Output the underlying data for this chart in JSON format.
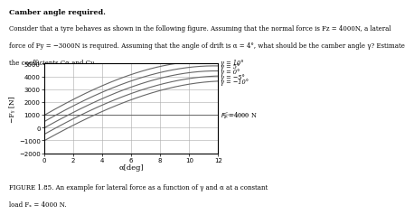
{
  "title_line1": "Camber angle required.",
  "body_text": "Consider that a tyre behaves as shown in the following figure. Assuming that the normal force is Fz = 4000N, a lateral\nforce of Fy = −3000N is required. Assuming that the angle of drift is α = 4°, what should be the camber angle γ? Estimate\nthe coefficients Cα and Cγ.",
  "xlabel": "α[deg]",
  "ylabel": "−Fᵧ [N]",
  "xlim": [
    0,
    12
  ],
  "ylim": [
    -2000,
    5000
  ],
  "xticks": [
    0,
    2,
    4,
    6,
    8,
    10,
    12
  ],
  "yticks": [
    -2000,
    -1000,
    0,
    1000,
    2000,
    3000,
    4000,
    5000
  ],
  "figure_caption_bold": "FIGURE 1.85.",
  "figure_caption_rest": " An example for lateral force as a function of γ and α at a constant",
  "figure_caption2": "load Fₓ = 4000 N.",
  "fz_y": 1000,
  "alpha_points": [
    0,
    2,
    4,
    6,
    8,
    10,
    12
  ],
  "curves": {
    "10": [
      1000,
      2100,
      3300,
      4200,
      4800,
      5050,
      5200
    ],
    "5": [
      500,
      1600,
      2800,
      3700,
      4300,
      4650,
      4850
    ],
    "0": [
      0,
      1100,
      2300,
      3200,
      3850,
      4250,
      4450
    ],
    "-5": [
      -500,
      600,
      1800,
      2700,
      3350,
      3800,
      4050
    ],
    "-10": [
      -1000,
      100,
      1300,
      2200,
      2900,
      3350,
      3650
    ]
  },
  "gamma_label_texts": [
    "γ = 10°",
    "γ = 5°",
    "γ = 0°",
    "γ = −5°",
    "γ = −10°"
  ],
  "gamma_keys": [
    "10",
    "5",
    "0",
    "-5",
    "-10"
  ],
  "line_color": "#666666",
  "grid_color": "#aaaaaa",
  "bg_color": "#ffffff",
  "text_color": "#000000"
}
